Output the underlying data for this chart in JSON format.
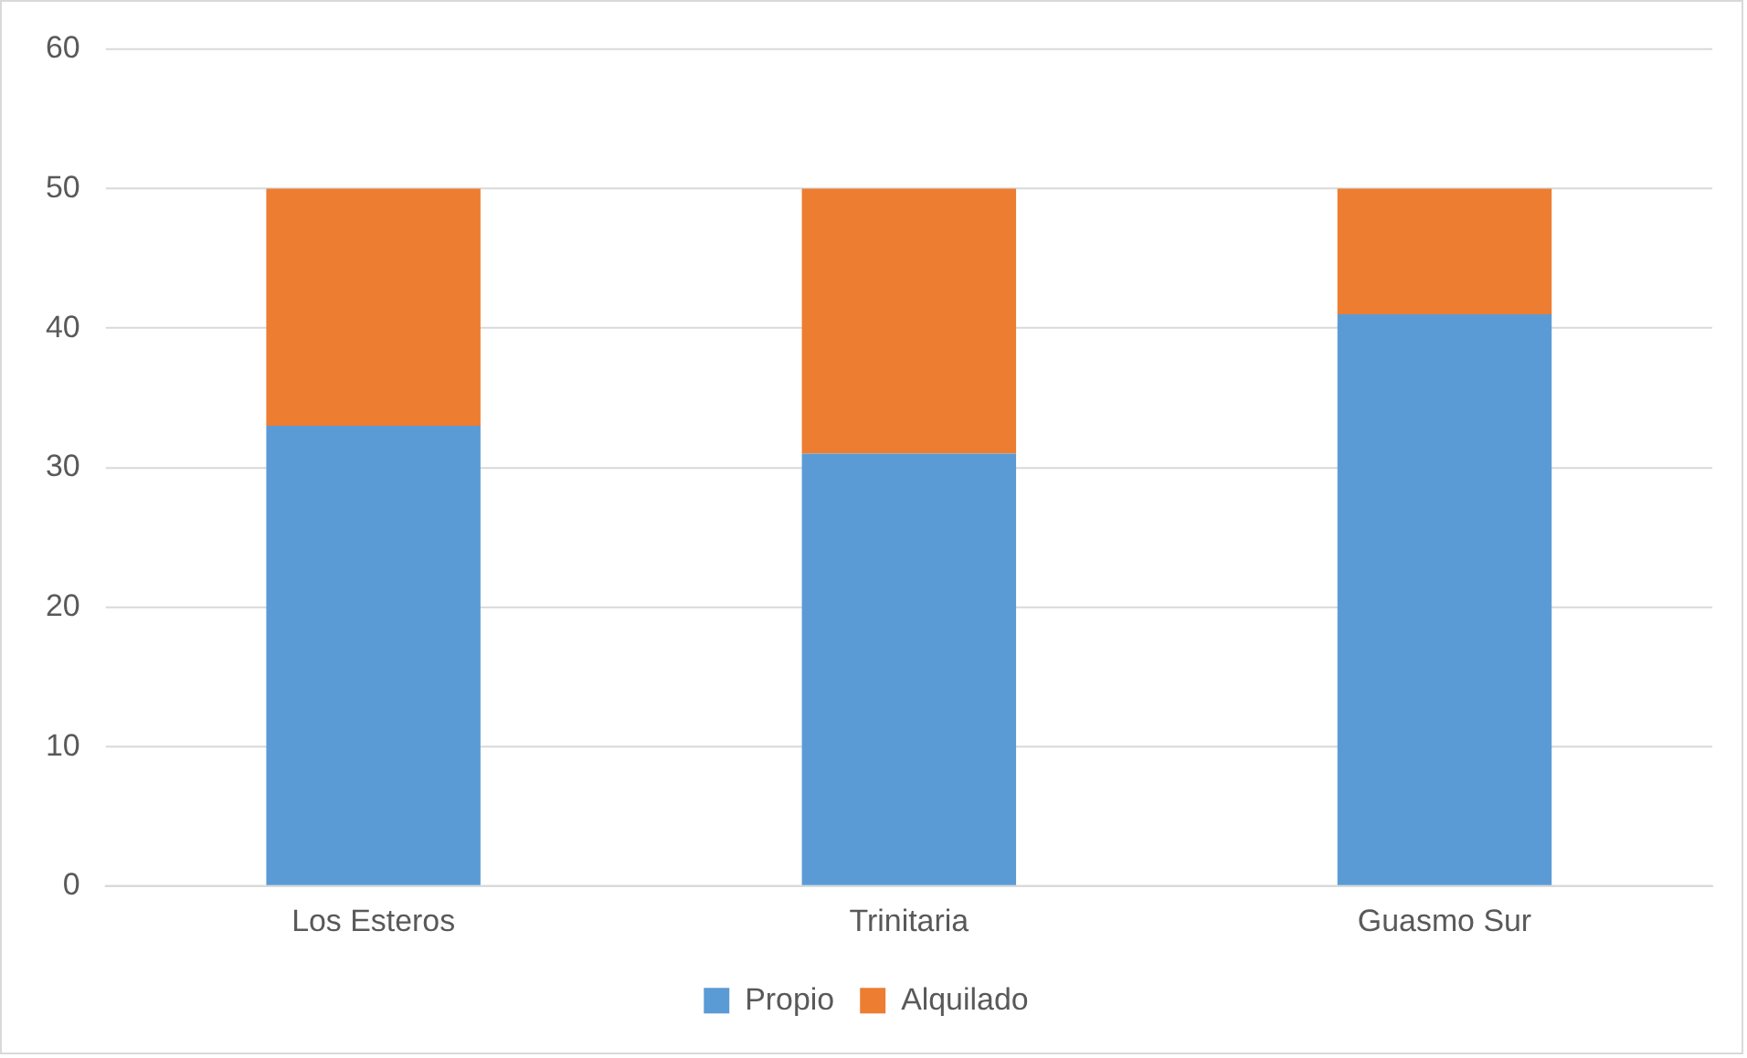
{
  "chart_data": {
    "type": "bar",
    "stacked": true,
    "categories": [
      "Los Esteros",
      "Trinitaria",
      "Guasmo Sur"
    ],
    "series": [
      {
        "name": "Propio",
        "color": "#5b9bd5",
        "values": [
          33,
          31,
          41
        ]
      },
      {
        "name": "Alquilado",
        "color": "#ed7d31",
        "values": [
          17,
          19,
          9
        ]
      }
    ],
    "ylim": [
      0,
      60
    ],
    "yticks": [
      0,
      10,
      20,
      30,
      40,
      50,
      60
    ],
    "grid": "y",
    "legend": "bottom"
  }
}
